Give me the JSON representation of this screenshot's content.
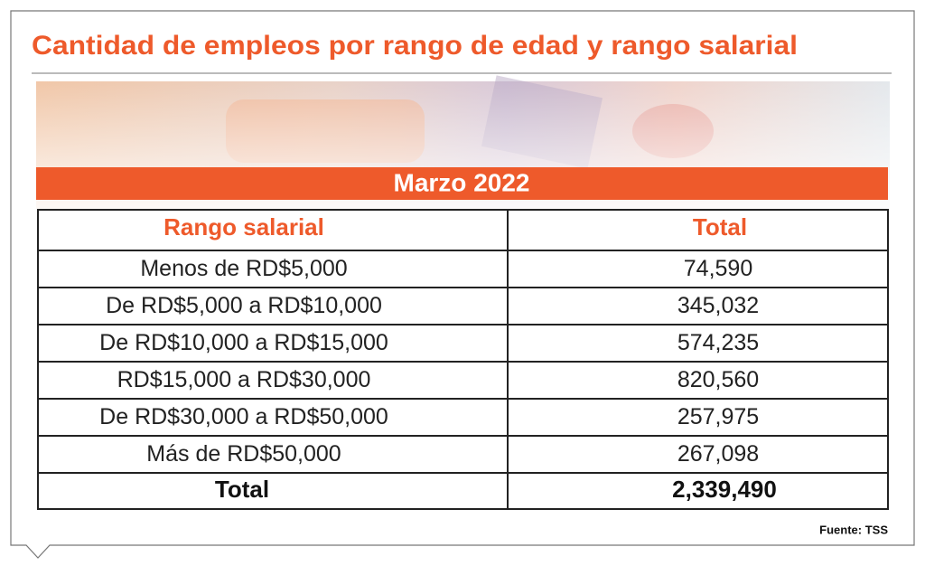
{
  "header": {
    "title": "Cantidad de empleos por rango de edad y rango salarial"
  },
  "table": {
    "period": "Marzo 2022",
    "columns": [
      "Rango salarial",
      "Total"
    ],
    "rows": [
      [
        "Menos de RD$5,000",
        "74,590"
      ],
      [
        "De RD$5,000 a RD$10,000",
        "345,032"
      ],
      [
        "De RD$10,000 a RD$15,000",
        "574,235"
      ],
      [
        "RD$15,000 a RD$30,000",
        "820,560"
      ],
      [
        "De RD$30,000 a RD$50,000",
        "257,975"
      ],
      [
        "Más de RD$50,000",
        "267,098"
      ]
    ],
    "total": [
      "Total",
      "2,339,490"
    ]
  },
  "source": "Fuente: TSS"
}
